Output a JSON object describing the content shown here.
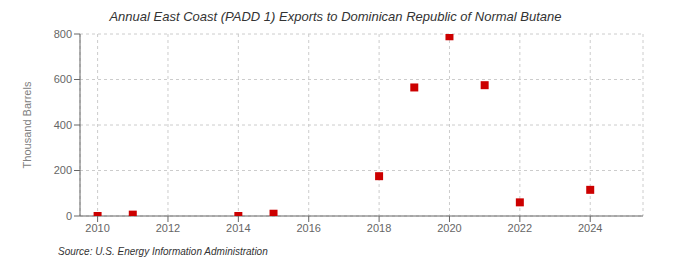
{
  "chart_data": {
    "type": "scatter",
    "title": "Annual East Coast (PADD 1) Exports to Dominican Republic of Normal Butane",
    "ylabel": "Thousand Barrels",
    "source": "Source: U.S. Energy Information Administration",
    "x": [
      2010,
      2011,
      2014,
      2015,
      2018,
      2019,
      2020,
      2021,
      2022,
      2024
    ],
    "values": [
      0,
      6,
      0,
      10,
      175,
      565,
      790,
      575,
      60,
      115
    ],
    "color": "#cc0000",
    "marker": "square",
    "xlim": [
      2009.5,
      2025.5
    ],
    "ylim": [
      0,
      800
    ],
    "xticks": [
      2010,
      2012,
      2014,
      2016,
      2018,
      2020,
      2022,
      2024
    ],
    "yticks": [
      0,
      200,
      400,
      600,
      800
    ],
    "grid": true
  }
}
